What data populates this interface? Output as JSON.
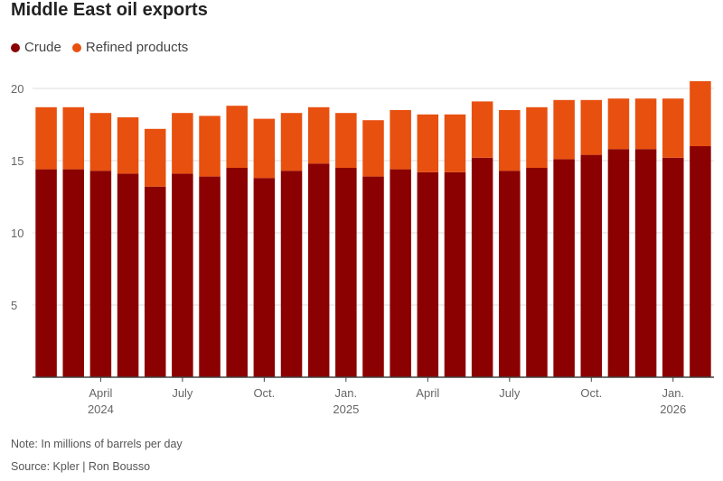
{
  "title": "Middle East oil exports",
  "note": "Note: In millions of barrels per day",
  "source": "Source: Kpler | Ron Bousso",
  "colors": {
    "crude": "#8b0000",
    "refined": "#e8500f",
    "grid": "#dddddd",
    "axis": "#444444",
    "text": "#666666"
  },
  "chart_data": {
    "type": "bar",
    "stacked": true,
    "title": "Middle East oil exports",
    "ylabel": "",
    "xlabel": "",
    "ylim": [
      0,
      20
    ],
    "yticks": [
      5,
      10,
      15,
      20
    ],
    "categories": [
      "Feb 2024",
      "Mar 2024",
      "Apr 2024",
      "May 2024",
      "Jun 2024",
      "Jul 2024",
      "Aug 2024",
      "Sep 2024",
      "Oct 2024",
      "Nov 2024",
      "Dec 2024",
      "Jan 2025",
      "Feb 2025",
      "Mar 2025",
      "Apr 2025",
      "May 2025",
      "Jun 2025",
      "Jul 2025",
      "Aug 2025",
      "Sep 2025",
      "Oct 2025",
      "Nov 2025",
      "Dec 2025",
      "Jan 2026",
      "Feb 2026"
    ],
    "xtick_labels": [
      {
        "index": 2,
        "month": "April",
        "year": "2024"
      },
      {
        "index": 5,
        "month": "July",
        "year": ""
      },
      {
        "index": 8,
        "month": "Oct.",
        "year": ""
      },
      {
        "index": 11,
        "month": "Jan.",
        "year": "2025"
      },
      {
        "index": 14,
        "month": "April",
        "year": ""
      },
      {
        "index": 17,
        "month": "July",
        "year": ""
      },
      {
        "index": 20,
        "month": "Oct.",
        "year": ""
      },
      {
        "index": 23,
        "month": "Jan.",
        "year": "2026"
      }
    ],
    "series": [
      {
        "name": "Crude",
        "values": [
          14.4,
          14.4,
          14.3,
          14.1,
          13.2,
          14.1,
          13.9,
          14.5,
          13.8,
          14.3,
          14.8,
          14.5,
          13.9,
          14.4,
          14.2,
          14.2,
          15.2,
          14.3,
          14.5,
          15.1,
          15.4,
          15.8,
          15.8,
          15.2,
          16.0
        ]
      },
      {
        "name": "Refined products",
        "values": [
          4.3,
          4.3,
          4.0,
          3.9,
          4.0,
          4.2,
          4.2,
          4.3,
          4.1,
          4.0,
          3.9,
          3.8,
          3.9,
          4.1,
          4.0,
          4.0,
          3.9,
          4.2,
          4.2,
          4.1,
          3.8,
          3.5,
          3.5,
          4.1,
          4.5
        ]
      }
    ],
    "legend": "top-left",
    "grid": true
  }
}
